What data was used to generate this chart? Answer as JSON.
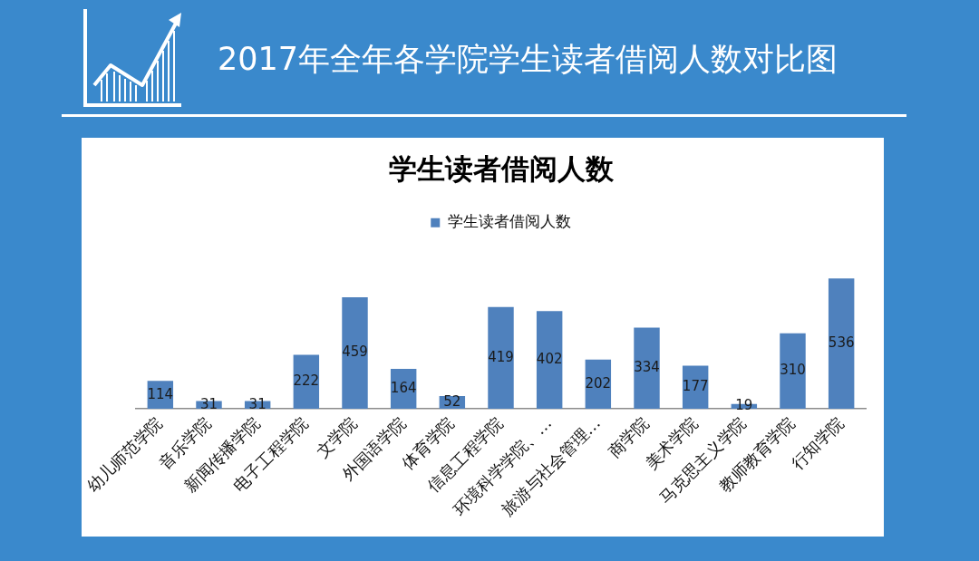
{
  "chart_data": {
    "type": "bar",
    "title": "2017年全年各学院学生读者借阅人数对比图",
    "subtitle": "学生读者借阅人数",
    "categories": [
      "幼儿师范学院",
      "音乐学院",
      "新闻传播学院",
      "电子工程学院",
      "文学院",
      "外国语学院",
      "体育学院",
      "信息工程学院",
      "环境科学学院、…",
      "旅游与社会管理…",
      "商学院",
      "美术学院",
      "马克思主义学院",
      "教师教育学院",
      "行知学院"
    ],
    "series": [
      {
        "name": "学生读者借阅人数",
        "color": "#4f81bd",
        "values": [
          114,
          31,
          31,
          222,
          459,
          164,
          52,
          419,
          402,
          202,
          334,
          177,
          19,
          310,
          536
        ]
      }
    ],
    "data_labels": true,
    "legend": "top",
    "grid": false,
    "tick_labels": "x"
  }
}
